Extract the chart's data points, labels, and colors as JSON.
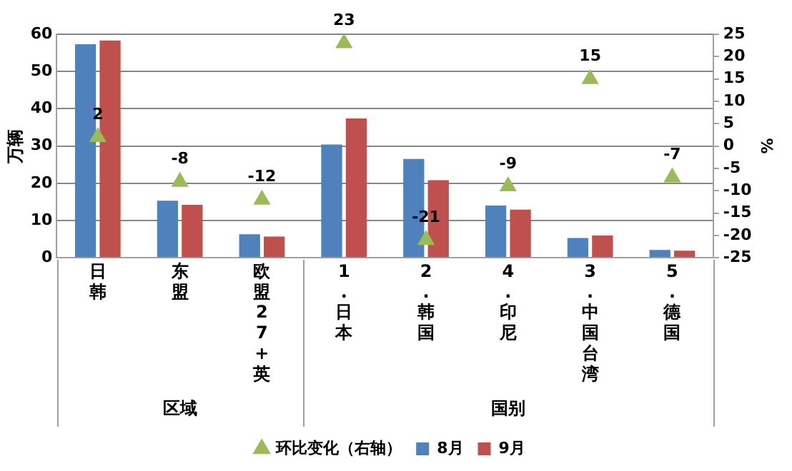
{
  "chart_data": {
    "type": "bar",
    "ylabel": "万辆",
    "y2label": "%",
    "categories": [
      "日韩",
      "东盟",
      "欧盟27+英",
      "1.日本",
      "2.韩国",
      "4.印尼",
      "3.中国台湾",
      "5.德国"
    ],
    "series": [
      {
        "name": "8月",
        "color": "#4f81bd",
        "values": [
          57.3,
          15.3,
          6.3,
          30.4,
          26.5,
          14.0,
          5.3,
          2.1
        ]
      },
      {
        "name": "9月",
        "color": "#c0504d",
        "values": [
          58.3,
          14.2,
          5.7,
          37.4,
          20.8,
          12.9,
          6.0,
          1.9
        ]
      },
      {
        "name": "环比变化（右轴）",
        "type": "scatter",
        "axis": "y2",
        "color": "#9bbb59",
        "marker": "triangle",
        "values": [
          2,
          -8,
          -12,
          23,
          -21,
          -9,
          15,
          -7
        ],
        "value_labels": [
          "2",
          "-8",
          "-12",
          "23",
          "-21",
          "-9",
          "15",
          "-7"
        ]
      }
    ],
    "ylim": [
      0,
      60
    ],
    "yticks": [
      0,
      10,
      20,
      30,
      40,
      50,
      60
    ],
    "y2lim": [
      -25,
      25
    ],
    "y2ticks": [
      -25,
      -20,
      -15,
      -10,
      -5,
      0,
      5,
      10,
      15,
      20,
      25
    ],
    "grid": "y",
    "legend": "bottom",
    "annotations": [
      "区域",
      "国别"
    ]
  }
}
